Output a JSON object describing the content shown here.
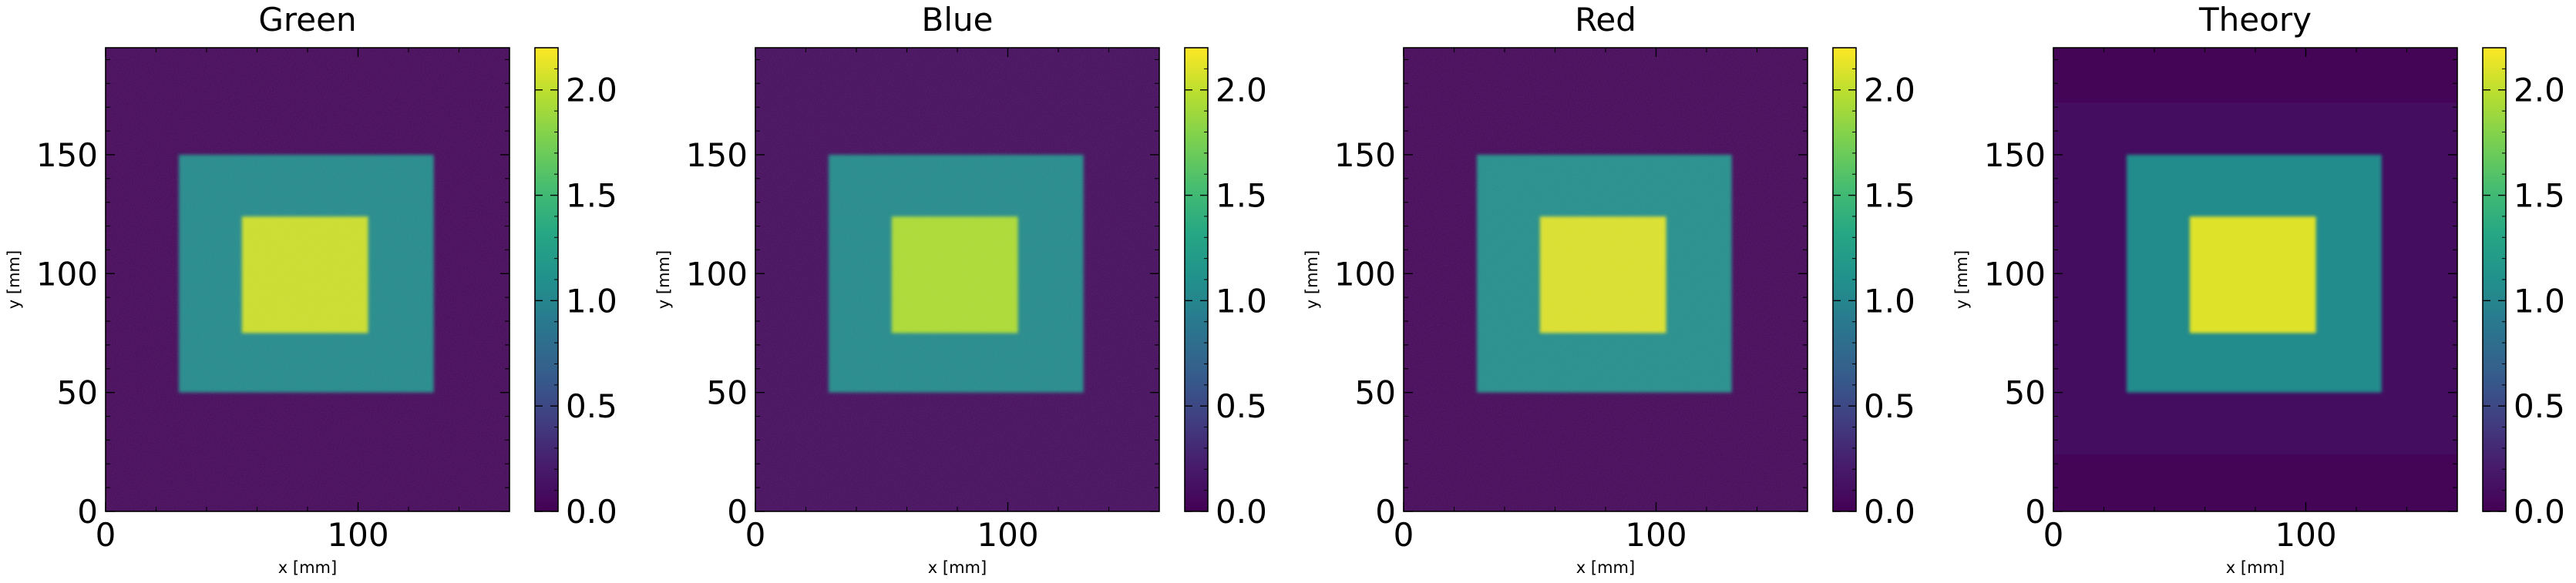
{
  "chart_data": [
    {
      "type": "heatmap",
      "title": "Green",
      "xlabel": "x [mm]",
      "ylabel": "y [mm]",
      "xlim": [
        0,
        160
      ],
      "ylim": [
        0,
        195
      ],
      "xticks": [
        0,
        100
      ],
      "yticks": [
        0,
        50,
        100,
        150
      ],
      "colorbar": {
        "range": [
          0,
          2.2
        ],
        "ticks": [
          0.0,
          0.5,
          1.0,
          1.5,
          2.0
        ],
        "colormap": "viridis"
      },
      "regions": [
        {
          "label": "background",
          "x": [
            0,
            160
          ],
          "y": [
            0,
            195
          ],
          "value": 0.05
        },
        {
          "label": "outer square",
          "x": [
            29,
            130
          ],
          "y": [
            50,
            150
          ],
          "value": 1.05
        },
        {
          "label": "inner square",
          "x": [
            54,
            104
          ],
          "y": [
            75,
            124
          ],
          "value": 2.05
        }
      ]
    },
    {
      "type": "heatmap",
      "title": "Blue",
      "xlabel": "x [mm]",
      "ylabel": "y [mm]",
      "xlim": [
        0,
        160
      ],
      "ylim": [
        0,
        195
      ],
      "xticks": [
        0,
        100
      ],
      "yticks": [
        0,
        50,
        100,
        150
      ],
      "colorbar": {
        "range": [
          0,
          2.2
        ],
        "ticks": [
          0.0,
          0.5,
          1.0,
          1.5,
          2.0
        ],
        "colormap": "viridis"
      },
      "regions": [
        {
          "label": "background",
          "x": [
            0,
            160
          ],
          "y": [
            0,
            195
          ],
          "value": 0.08
        },
        {
          "label": "outer square",
          "x": [
            29,
            130
          ],
          "y": [
            50,
            150
          ],
          "value": 1.05
        },
        {
          "label": "inner square",
          "x": [
            54,
            104
          ],
          "y": [
            75,
            124
          ],
          "value": 1.95
        }
      ]
    },
    {
      "type": "heatmap",
      "title": "Red",
      "xlabel": "x [mm]",
      "ylabel": "y [mm]",
      "xlim": [
        0,
        160
      ],
      "ylim": [
        0,
        195
      ],
      "xticks": [
        0,
        100
      ],
      "yticks": [
        0,
        50,
        100,
        150
      ],
      "colorbar": {
        "range": [
          0,
          2.2
        ],
        "ticks": [
          0.0,
          0.5,
          1.0,
          1.5,
          2.0
        ],
        "colormap": "viridis"
      },
      "regions": [
        {
          "label": "background",
          "x": [
            0,
            160
          ],
          "y": [
            0,
            195
          ],
          "value": 0.04
        },
        {
          "label": "outer square",
          "x": [
            29,
            130
          ],
          "y": [
            50,
            150
          ],
          "value": 1.08
        },
        {
          "label": "inner square",
          "x": [
            54,
            104
          ],
          "y": [
            75,
            124
          ],
          "value": 2.1
        }
      ]
    },
    {
      "type": "heatmap",
      "title": "Theory",
      "xlabel": "x [mm]",
      "ylabel": "y [mm]",
      "xlim": [
        0,
        160
      ],
      "ylim": [
        0,
        195
      ],
      "xticks": [
        0,
        100
      ],
      "yticks": [
        0,
        50,
        100,
        150
      ],
      "colorbar": {
        "range": [
          0,
          2.2
        ],
        "ticks": [
          0.0,
          0.5,
          1.0,
          1.5,
          2.0
        ],
        "colormap": "viridis"
      },
      "regions": [
        {
          "label": "background",
          "x": [
            0,
            160
          ],
          "y": [
            0,
            195
          ],
          "value": 0.03
        },
        {
          "label": "faint band",
          "x": [
            0,
            160
          ],
          "y": [
            24,
            172
          ],
          "value": 0.1
        },
        {
          "label": "outer square",
          "x": [
            29,
            130
          ],
          "y": [
            50,
            150
          ],
          "value": 1.05
        },
        {
          "label": "inner square",
          "x": [
            54,
            104
          ],
          "y": [
            75,
            124
          ],
          "value": 2.1
        }
      ]
    }
  ]
}
